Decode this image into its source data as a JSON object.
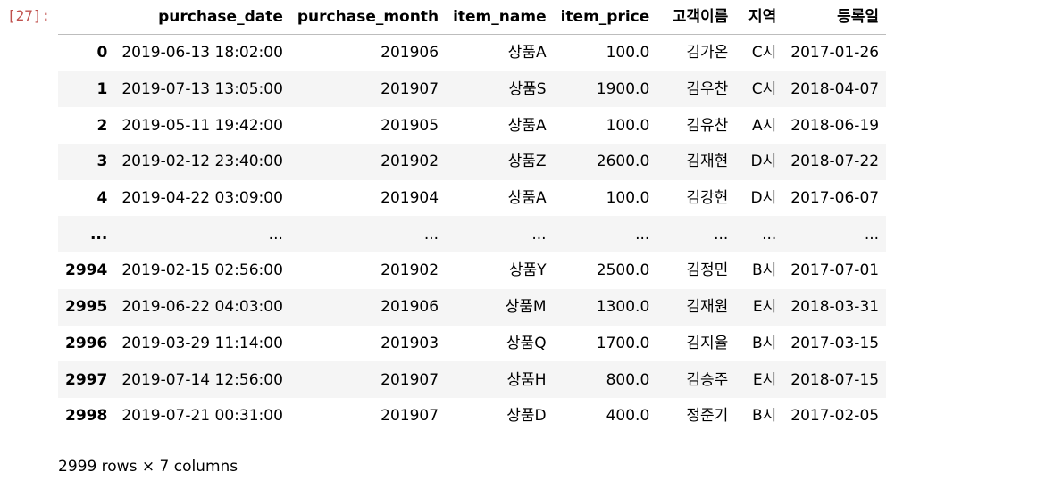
{
  "cell": {
    "prompt": "[27]:"
  },
  "table": {
    "columns": [
      "",
      "purchase_date",
      "purchase_month",
      "item_name",
      "item_price",
      "고객이름",
      "지역",
      "등록일"
    ],
    "rows": [
      [
        "0",
        "2019-06-13 18:02:00",
        "201906",
        "상품A",
        "100.0",
        "김가온",
        "C시",
        "2017-01-26"
      ],
      [
        "1",
        "2019-07-13 13:05:00",
        "201907",
        "상품S",
        "1900.0",
        "김우찬",
        "C시",
        "2018-04-07"
      ],
      [
        "2",
        "2019-05-11 19:42:00",
        "201905",
        "상품A",
        "100.0",
        "김유찬",
        "A시",
        "2018-06-19"
      ],
      [
        "3",
        "2019-02-12 23:40:00",
        "201902",
        "상품Z",
        "2600.0",
        "김재현",
        "D시",
        "2018-07-22"
      ],
      [
        "4",
        "2019-04-22 03:09:00",
        "201904",
        "상품A",
        "100.0",
        "김강현",
        "D시",
        "2017-06-07"
      ],
      [
        "...",
        "...",
        "...",
        "...",
        "...",
        "...",
        "...",
        "..."
      ],
      [
        "2994",
        "2019-02-15 02:56:00",
        "201902",
        "상품Y",
        "2500.0",
        "김정민",
        "B시",
        "2017-07-01"
      ],
      [
        "2995",
        "2019-06-22 04:03:00",
        "201906",
        "상품M",
        "1300.0",
        "김재원",
        "E시",
        "2018-03-31"
      ],
      [
        "2996",
        "2019-03-29 11:14:00",
        "201903",
        "상품Q",
        "1700.0",
        "김지율",
        "B시",
        "2017-03-15"
      ],
      [
        "2997",
        "2019-07-14 12:56:00",
        "201907",
        "상품H",
        "800.0",
        "김승주",
        "E시",
        "2018-07-15"
      ],
      [
        "2998",
        "2019-07-21 00:31:00",
        "201907",
        "상품D",
        "400.0",
        "정준기",
        "B시",
        "2017-02-05"
      ]
    ],
    "shape_text": "2999 rows × 7 columns"
  }
}
